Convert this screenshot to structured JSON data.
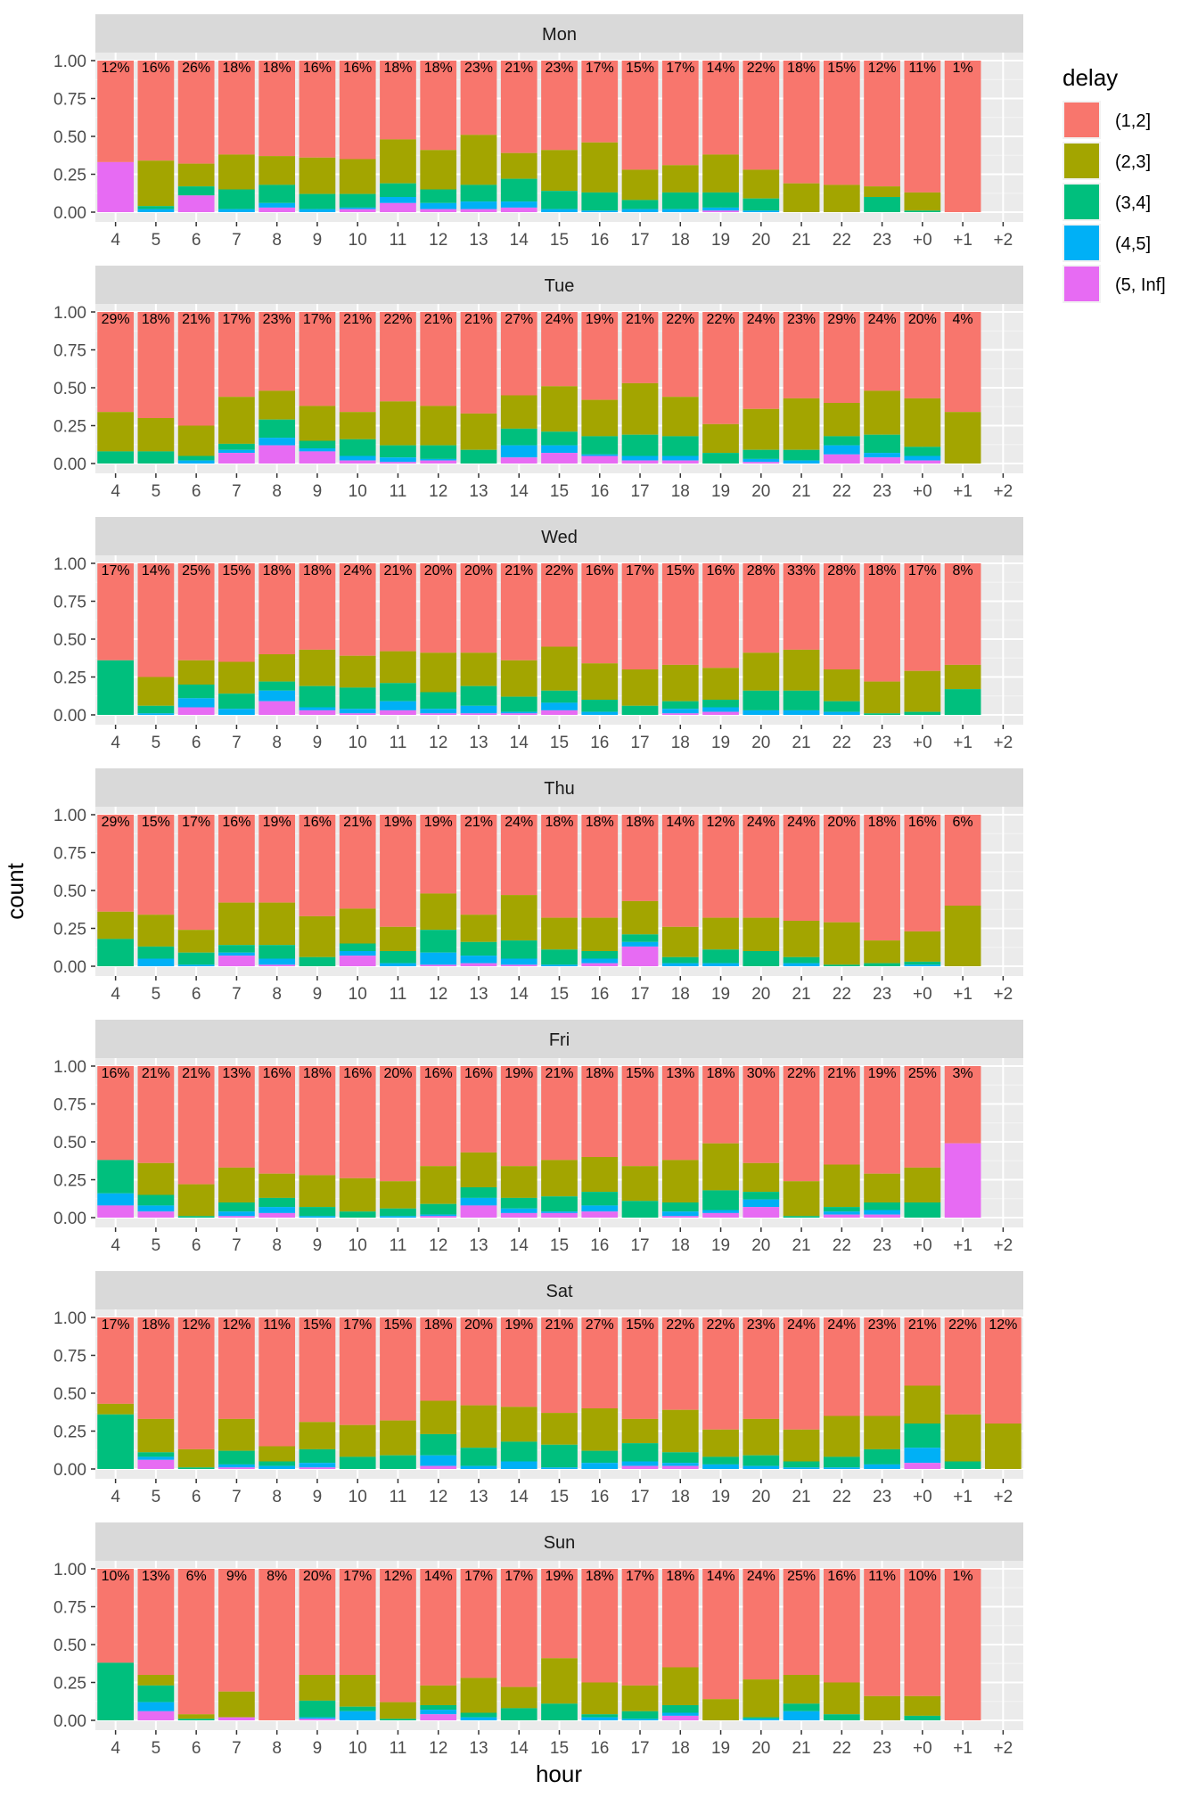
{
  "chart_data": {
    "type": "bar",
    "stacked": true,
    "position": "fill",
    "facet_by": "day",
    "xlabel": "hour",
    "ylabel": "count",
    "ylim": [
      0,
      1
    ],
    "y_ticks": [
      "0.00",
      "0.25",
      "0.50",
      "0.75",
      "1.00"
    ],
    "x_categories": [
      "4",
      "5",
      "6",
      "7",
      "8",
      "9",
      "10",
      "11",
      "12",
      "13",
      "14",
      "15",
      "16",
      "17",
      "18",
      "19",
      "20",
      "21",
      "22",
      "23",
      "+0",
      "+1",
      "+2"
    ],
    "legend": {
      "title": "delay",
      "position": "right",
      "items": [
        {
          "label": "(1,2]",
          "color": "#F8766D"
        },
        {
          "label": "(2,3]",
          "color": "#A3A500"
        },
        {
          "label": "(3,4]",
          "color": "#00BF7D"
        },
        {
          "label": "(4,5]",
          "color": "#00B0F6"
        },
        {
          "label": "(5, Inf]",
          "color": "#E76BF3"
        }
      ]
    },
    "panels": [
      {
        "day": "Mon",
        "percent_labels": [
          "12%",
          "16%",
          "26%",
          "18%",
          "18%",
          "16%",
          "16%",
          "18%",
          "18%",
          "23%",
          "21%",
          "23%",
          "17%",
          "15%",
          "17%",
          "14%",
          "22%",
          "18%",
          "15%",
          "12%",
          "11%",
          "1%",
          ""
        ],
        "cumulative_boundaries": [
          [
            0.33,
            0.33,
            0.33,
            0.33
          ],
          [
            0,
            0.02,
            0.04,
            0.34
          ],
          [
            0.11,
            0.11,
            0.17,
            0.32
          ],
          [
            0,
            0.02,
            0.15,
            0.38
          ],
          [
            0.03,
            0.06,
            0.18,
            0.37
          ],
          [
            0,
            0.02,
            0.12,
            0.36
          ],
          [
            0.02,
            0.03,
            0.12,
            0.35
          ],
          [
            0.06,
            0.1,
            0.19,
            0.48
          ],
          [
            0.02,
            0.06,
            0.15,
            0.41
          ],
          [
            0.02,
            0.07,
            0.18,
            0.51
          ],
          [
            0.03,
            0.07,
            0.22,
            0.39
          ],
          [
            0,
            0.02,
            0.14,
            0.41
          ],
          [
            0,
            0.01,
            0.13,
            0.46
          ],
          [
            0,
            0.02,
            0.08,
            0.28
          ],
          [
            0,
            0.02,
            0.13,
            0.31
          ],
          [
            0.01,
            0.03,
            0.13,
            0.38
          ],
          [
            0,
            0.01,
            0.09,
            0.28
          ],
          [
            0,
            0,
            0,
            0.19
          ],
          [
            0,
            0,
            0,
            0.18
          ],
          [
            0,
            0,
            0.1,
            0.17
          ],
          [
            0,
            0,
            0.01,
            0.13
          ],
          [
            0,
            0,
            0,
            0
          ],
          null
        ]
      },
      {
        "day": "Tue",
        "percent_labels": [
          "29%",
          "18%",
          "21%",
          "17%",
          "23%",
          "17%",
          "21%",
          "22%",
          "21%",
          "21%",
          "27%",
          "24%",
          "19%",
          "21%",
          "22%",
          "22%",
          "24%",
          "23%",
          "29%",
          "24%",
          "20%",
          "4%",
          ""
        ],
        "cumulative_boundaries": [
          [
            0,
            0,
            0.08,
            0.34
          ],
          [
            0,
            0,
            0.08,
            0.3
          ],
          [
            0,
            0.02,
            0.05,
            0.25
          ],
          [
            0.07,
            0.09,
            0.13,
            0.44
          ],
          [
            0.12,
            0.17,
            0.29,
            0.48
          ],
          [
            0.08,
            0.1,
            0.15,
            0.38
          ],
          [
            0.02,
            0.05,
            0.16,
            0.34
          ],
          [
            0.01,
            0.04,
            0.12,
            0.41
          ],
          [
            0.02,
            0.03,
            0.12,
            0.38
          ],
          [
            0,
            0,
            0.09,
            0.33
          ],
          [
            0.04,
            0.12,
            0.23,
            0.45
          ],
          [
            0.07,
            0.12,
            0.21,
            0.51
          ],
          [
            0.05,
            0.06,
            0.18,
            0.42
          ],
          [
            0.02,
            0.05,
            0.19,
            0.53
          ],
          [
            0.02,
            0.05,
            0.18,
            0.44
          ],
          [
            0,
            0,
            0.07,
            0.26
          ],
          [
            0.01,
            0.03,
            0.09,
            0.36
          ],
          [
            0,
            0.02,
            0.09,
            0.43
          ],
          [
            0.06,
            0.12,
            0.18,
            0.4
          ],
          [
            0.04,
            0.07,
            0.19,
            0.48
          ],
          [
            0.02,
            0.05,
            0.11,
            0.43
          ],
          [
            0,
            0,
            0,
            0.34
          ],
          null
        ]
      },
      {
        "day": "Wed",
        "percent_labels": [
          "17%",
          "14%",
          "25%",
          "15%",
          "18%",
          "18%",
          "24%",
          "21%",
          "20%",
          "20%",
          "21%",
          "22%",
          "16%",
          "17%",
          "15%",
          "16%",
          "28%",
          "33%",
          "28%",
          "18%",
          "17%",
          "8%",
          ""
        ],
        "cumulative_boundaries": [
          [
            0,
            0,
            0.36,
            0.36
          ],
          [
            0,
            0.01,
            0.06,
            0.25
          ],
          [
            0.05,
            0.11,
            0.2,
            0.36
          ],
          [
            0,
            0.04,
            0.14,
            0.35
          ],
          [
            0.09,
            0.16,
            0.22,
            0.4
          ],
          [
            0.03,
            0.05,
            0.19,
            0.43
          ],
          [
            0.01,
            0.04,
            0.18,
            0.39
          ],
          [
            0.03,
            0.09,
            0.21,
            0.42
          ],
          [
            0.01,
            0.04,
            0.15,
            0.41
          ],
          [
            0.01,
            0.06,
            0.19,
            0.41
          ],
          [
            0.01,
            0.02,
            0.12,
            0.36
          ],
          [
            0.03,
            0.08,
            0.16,
            0.45
          ],
          [
            0,
            0.02,
            0.1,
            0.34
          ],
          [
            0,
            0,
            0.06,
            0.3
          ],
          [
            0.01,
            0.04,
            0.09,
            0.33
          ],
          [
            0.02,
            0.05,
            0.1,
            0.31
          ],
          [
            0,
            0.03,
            0.16,
            0.41
          ],
          [
            0,
            0.03,
            0.16,
            0.43
          ],
          [
            0,
            0.02,
            0.09,
            0.3
          ],
          [
            0,
            0,
            0.01,
            0.22
          ],
          [
            0,
            0,
            0.02,
            0.29
          ],
          [
            0,
            0,
            0.17,
            0.33
          ],
          null
        ]
      },
      {
        "day": "Thu",
        "percent_labels": [
          "29%",
          "15%",
          "17%",
          "16%",
          "19%",
          "16%",
          "21%",
          "19%",
          "19%",
          "21%",
          "24%",
          "18%",
          "18%",
          "18%",
          "14%",
          "12%",
          "24%",
          "24%",
          "20%",
          "18%",
          "16%",
          "6%",
          ""
        ],
        "cumulative_boundaries": [
          [
            0,
            0,
            0.18,
            0.36
          ],
          [
            0,
            0.05,
            0.13,
            0.34
          ],
          [
            0,
            0.01,
            0.09,
            0.24
          ],
          [
            0.07,
            0.09,
            0.14,
            0.42
          ],
          [
            0.01,
            0.05,
            0.14,
            0.42
          ],
          [
            0,
            0,
            0.06,
            0.33
          ],
          [
            0.07,
            0.1,
            0.15,
            0.38
          ],
          [
            0,
            0.02,
            0.1,
            0.26
          ],
          [
            0.01,
            0.09,
            0.24,
            0.48
          ],
          [
            0.02,
            0.07,
            0.16,
            0.34
          ],
          [
            0.01,
            0.05,
            0.17,
            0.47
          ],
          [
            0,
            0.01,
            0.11,
            0.32
          ],
          [
            0.02,
            0.05,
            0.1,
            0.32
          ],
          [
            0.13,
            0.16,
            0.21,
            0.43
          ],
          [
            0,
            0.02,
            0.06,
            0.26
          ],
          [
            0,
            0.02,
            0.11,
            0.32
          ],
          [
            0,
            0,
            0.1,
            0.32
          ],
          [
            0,
            0.02,
            0.06,
            0.3
          ],
          [
            0,
            0,
            0.01,
            0.29
          ],
          [
            0,
            0,
            0.02,
            0.17
          ],
          [
            0,
            0.01,
            0.03,
            0.23
          ],
          [
            0,
            0,
            0,
            0.4
          ],
          null
        ]
      },
      {
        "day": "Fri",
        "percent_labels": [
          "16%",
          "21%",
          "21%",
          "13%",
          "16%",
          "18%",
          "16%",
          "20%",
          "16%",
          "16%",
          "19%",
          "21%",
          "18%",
          "15%",
          "13%",
          "18%",
          "30%",
          "22%",
          "21%",
          "19%",
          "25%",
          "3%",
          ""
        ],
        "cumulative_boundaries": [
          [
            0.08,
            0.16,
            0.38,
            0.38
          ],
          [
            0.04,
            0.08,
            0.15,
            0.36
          ],
          [
            0,
            0,
            0.01,
            0.22
          ],
          [
            0.01,
            0.04,
            0.1,
            0.33
          ],
          [
            0.03,
            0.07,
            0.13,
            0.29
          ],
          [
            0,
            0.01,
            0.07,
            0.28
          ],
          [
            0,
            0,
            0.04,
            0.26
          ],
          [
            0,
            0.01,
            0.06,
            0.24
          ],
          [
            0.01,
            0.02,
            0.09,
            0.34
          ],
          [
            0.08,
            0.13,
            0.2,
            0.43
          ],
          [
            0.03,
            0.06,
            0.13,
            0.34
          ],
          [
            0.03,
            0.04,
            0.14,
            0.38
          ],
          [
            0.04,
            0.08,
            0.17,
            0.4
          ],
          [
            0,
            0,
            0.11,
            0.34
          ],
          [
            0.01,
            0.04,
            0.1,
            0.38
          ],
          [
            0.03,
            0.05,
            0.18,
            0.49
          ],
          [
            0.07,
            0.12,
            0.17,
            0.36
          ],
          [
            0,
            0,
            0.01,
            0.24
          ],
          [
            0.02,
            0.04,
            0.07,
            0.35
          ],
          [
            0.02,
            0.05,
            0.1,
            0.29
          ],
          [
            0,
            0,
            0.1,
            0.33
          ],
          [
            0.49,
            0.49,
            0.49,
            0.49
          ],
          null
        ]
      },
      {
        "day": "Sat",
        "percent_labels": [
          "17%",
          "18%",
          "12%",
          "12%",
          "11%",
          "15%",
          "17%",
          "15%",
          "18%",
          "20%",
          "19%",
          "21%",
          "27%",
          "15%",
          "22%",
          "22%",
          "23%",
          "24%",
          "24%",
          "23%",
          "21%",
          "22%",
          "12%"
        ],
        "cumulative_boundaries": [
          [
            0,
            0,
            0.36,
            0.43
          ],
          [
            0.06,
            0.08,
            0.11,
            0.33
          ],
          [
            0,
            0,
            0.01,
            0.13
          ],
          [
            0.01,
            0.03,
            0.12,
            0.33
          ],
          [
            0,
            0.02,
            0.05,
            0.15
          ],
          [
            0.01,
            0.04,
            0.13,
            0.31
          ],
          [
            0,
            0,
            0.08,
            0.29
          ],
          [
            0,
            0,
            0.09,
            0.32
          ],
          [
            0.02,
            0.09,
            0.23,
            0.45
          ],
          [
            0,
            0.02,
            0.14,
            0.42
          ],
          [
            0,
            0.05,
            0.18,
            0.41
          ],
          [
            0,
            0.01,
            0.16,
            0.37
          ],
          [
            0,
            0.04,
            0.12,
            0.4
          ],
          [
            0.02,
            0.05,
            0.17,
            0.33
          ],
          [
            0.02,
            0.04,
            0.11,
            0.39
          ],
          [
            0,
            0.03,
            0.08,
            0.26
          ],
          [
            0,
            0.02,
            0.09,
            0.33
          ],
          [
            0,
            0.01,
            0.05,
            0.26
          ],
          [
            0,
            0.01,
            0.08,
            0.35
          ],
          [
            0,
            0.03,
            0.13,
            0.35
          ],
          [
            0.04,
            0.14,
            0.3,
            0.55
          ],
          [
            0,
            0,
            0.05,
            0.36
          ],
          [
            0,
            0,
            0,
            0.3
          ]
        ]
      },
      {
        "day": "Sun",
        "percent_labels": [
          "10%",
          "13%",
          "6%",
          "9%",
          "8%",
          "20%",
          "17%",
          "12%",
          "14%",
          "17%",
          "17%",
          "19%",
          "18%",
          "17%",
          "18%",
          "14%",
          "24%",
          "25%",
          "16%",
          "11%",
          "10%",
          "1%",
          ""
        ],
        "cumulative_boundaries": [
          [
            0,
            0,
            0.38,
            0.38
          ],
          [
            0.06,
            0.12,
            0.23,
            0.3
          ],
          [
            0,
            0,
            0.01,
            0.04
          ],
          [
            0.02,
            0.02,
            0.02,
            0.19
          ],
          [
            0,
            0,
            0,
            0
          ],
          [
            0.01,
            0.02,
            0.13,
            0.3
          ],
          [
            0,
            0.06,
            0.09,
            0.3
          ],
          [
            0,
            0,
            0.01,
            0.12
          ],
          [
            0.04,
            0.07,
            0.1,
            0.23
          ],
          [
            0,
            0.02,
            0.05,
            0.28
          ],
          [
            0,
            0,
            0.08,
            0.22
          ],
          [
            0,
            0,
            0.11,
            0.41
          ],
          [
            0,
            0.02,
            0.04,
            0.25
          ],
          [
            0,
            0.01,
            0.06,
            0.23
          ],
          [
            0.03,
            0.05,
            0.1,
            0.35
          ],
          [
            0,
            0,
            0,
            0.14
          ],
          [
            0,
            0.01,
            0.02,
            0.27
          ],
          [
            0,
            0.06,
            0.11,
            0.3
          ],
          [
            0,
            0,
            0.04,
            0.25
          ],
          [
            0,
            0,
            0,
            0.16
          ],
          [
            0,
            0,
            0.03,
            0.16
          ],
          [
            0,
            0,
            0,
            0
          ],
          null
        ]
      }
    ]
  }
}
